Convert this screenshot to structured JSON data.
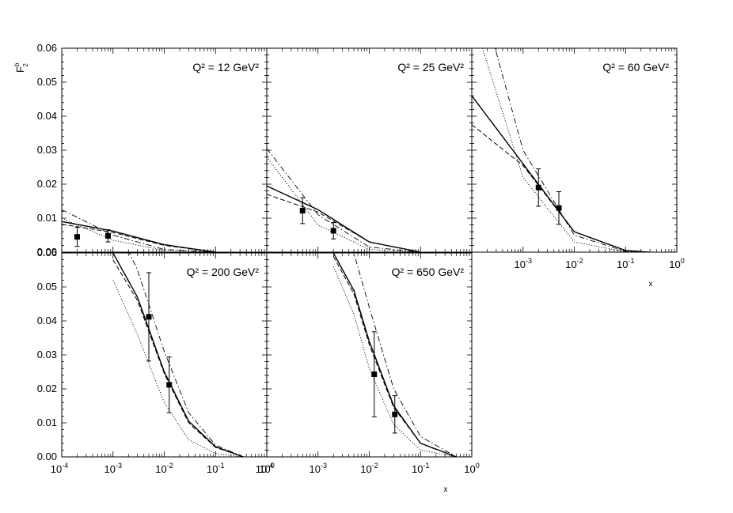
{
  "figure": {
    "ylabel_main": "F",
    "ylabel_sup": "b",
    "ylabel_sub": "2",
    "xlabel": "x"
  },
  "chart_data": [
    {
      "type": "line",
      "title": "Q² = 12 GeV²",
      "q2": "12",
      "xscale": "log",
      "xlim": [
        0.0001,
        1
      ],
      "ylim": [
        0,
        0.06
      ],
      "points": [
        {
          "x": 0.0002,
          "y": 0.0045,
          "yerr": 0.0028
        },
        {
          "x": 0.0008,
          "y": 0.0048,
          "yerr": 0.0018
        }
      ],
      "curves": [
        {
          "style": "solid",
          "x": [
            0.0001,
            0.001,
            0.01,
            0.1
          ],
          "y": [
            0.009,
            0.0062,
            0.0022,
            0
          ]
        },
        {
          "style": "dashed",
          "x": [
            0.0001,
            0.001,
            0.01,
            0.1
          ],
          "y": [
            0.0082,
            0.0058,
            0.002,
            0
          ]
        },
        {
          "style": "dashdot",
          "x": [
            0.0001,
            0.001,
            0.01,
            0.1
          ],
          "y": [
            0.0125,
            0.005,
            0.0008,
            0
          ]
        },
        {
          "style": "dotted",
          "x": [
            0.0001,
            0.001,
            0.01,
            0.1
          ],
          "y": [
            0.01,
            0.0035,
            0.0005,
            0
          ]
        }
      ]
    },
    {
      "type": "line",
      "title": "Q² = 25 GeV²",
      "q2": "25",
      "xscale": "log",
      "xlim": [
        0.0001,
        1
      ],
      "ylim": [
        0,
        0.06
      ],
      "points": [
        {
          "x": 0.0005,
          "y": 0.0122,
          "yerr": 0.0038
        },
        {
          "x": 0.002,
          "y": 0.0063,
          "yerr": 0.0024
        }
      ],
      "curves": [
        {
          "style": "solid",
          "x": [
            0.0001,
            0.001,
            0.01,
            0.1
          ],
          "y": [
            0.0195,
            0.0125,
            0.003,
            0
          ]
        },
        {
          "style": "dashed",
          "x": [
            0.0001,
            0.001,
            0.01,
            0.1
          ],
          "y": [
            0.017,
            0.0118,
            0.003,
            0
          ]
        },
        {
          "style": "dashdot",
          "x": [
            0.0001,
            0.001,
            0.01,
            0.1
          ],
          "y": [
            0.0305,
            0.011,
            0.0015,
            0
          ]
        },
        {
          "style": "dotted",
          "x": [
            0.0001,
            0.001,
            0.01,
            0.1
          ],
          "y": [
            0.028,
            0.008,
            0.0008,
            0
          ]
        }
      ]
    },
    {
      "type": "line",
      "title": "Q² = 60 GeV²",
      "q2": "60",
      "xscale": "log",
      "xlim": [
        0.0001,
        1
      ],
      "ylim": [
        0,
        0.06
      ],
      "xticklabels_show": true,
      "points": [
        {
          "x": 0.002,
          "y": 0.019,
          "yerr": 0.0055
        },
        {
          "x": 0.005,
          "y": 0.013,
          "yerr": 0.0048
        }
      ],
      "curves": [
        {
          "style": "solid",
          "x": [
            0.0001,
            0.001,
            0.01,
            0.1,
            0.3
          ],
          "y": [
            0.046,
            0.026,
            0.006,
            0.0005,
            0
          ]
        },
        {
          "style": "dashed",
          "x": [
            0.0001,
            0.001,
            0.01,
            0.1,
            0.3
          ],
          "y": [
            0.0375,
            0.0255,
            0.006,
            0.0005,
            0
          ]
        },
        {
          "style": "dashdot",
          "x": [
            0.0001,
            0.001,
            0.01,
            0.1,
            0.3
          ],
          "y": [
            0.085,
            0.03,
            0.005,
            0.0002,
            0
          ]
        },
        {
          "style": "dotted",
          "x": [
            0.0001,
            0.001,
            0.01,
            0.1,
            0.3
          ],
          "y": [
            0.07,
            0.022,
            0.003,
            0.0001,
            0
          ]
        }
      ]
    },
    {
      "type": "line",
      "title": "Q² = 200 GeV²",
      "q2": "200",
      "xscale": "log",
      "xlim": [
        0.0001,
        1
      ],
      "ylim": [
        0,
        0.06
      ],
      "points": [
        {
          "x": 0.005,
          "y": 0.0412,
          "yerr": 0.013
        },
        {
          "x": 0.0125,
          "y": 0.0212,
          "yerr": 0.0082
        }
      ],
      "curves": [
        {
          "style": "solid",
          "x": [
            0.001,
            0.003,
            0.01,
            0.03,
            0.1,
            0.35
          ],
          "y": [
            0.06,
            0.047,
            0.025,
            0.0105,
            0.003,
            0
          ]
        },
        {
          "style": "dashed",
          "x": [
            0.001,
            0.003,
            0.01,
            0.03,
            0.1,
            0.35
          ],
          "y": [
            0.058,
            0.046,
            0.0245,
            0.01,
            0.0028,
            0
          ]
        },
        {
          "style": "dashdot",
          "x": [
            0.001,
            0.003,
            0.01,
            0.03,
            0.1,
            0.35
          ],
          "y": [
            0.07,
            0.055,
            0.031,
            0.013,
            0.0035,
            0
          ]
        },
        {
          "style": "dotted",
          "x": [
            0.001,
            0.003,
            0.01,
            0.03,
            0.1,
            0.35
          ],
          "y": [
            0.052,
            0.036,
            0.016,
            0.005,
            0.001,
            0
          ]
        }
      ]
    },
    {
      "type": "line",
      "title": "Q² = 650 GeV²",
      "q2": "650",
      "xscale": "log",
      "xlim": [
        0.0001,
        1
      ],
      "ylim": [
        0,
        0.06
      ],
      "points": [
        {
          "x": 0.0125,
          "y": 0.0243,
          "yerr": 0.0125
        },
        {
          "x": 0.0315,
          "y": 0.0125,
          "yerr": 0.0055
        }
      ],
      "curves": [
        {
          "style": "solid",
          "x": [
            0.002,
            0.005,
            0.01,
            0.03,
            0.1,
            0.5
          ],
          "y": [
            0.06,
            0.049,
            0.034,
            0.015,
            0.004,
            0
          ]
        },
        {
          "style": "dashed",
          "x": [
            0.002,
            0.005,
            0.01,
            0.03,
            0.1,
            0.5
          ],
          "y": [
            0.059,
            0.048,
            0.033,
            0.0145,
            0.004,
            0
          ]
        },
        {
          "style": "dashdot",
          "x": [
            0.002,
            0.005,
            0.01,
            0.03,
            0.1,
            0.5
          ],
          "y": [
            0.07,
            0.06,
            0.044,
            0.02,
            0.006,
            0
          ]
        },
        {
          "style": "dotted",
          "x": [
            0.002,
            0.005,
            0.01,
            0.03,
            0.1,
            0.5
          ],
          "y": [
            0.056,
            0.042,
            0.026,
            0.0095,
            0.002,
            0
          ]
        }
      ]
    }
  ],
  "ytick_labels": [
    "0.00",
    "0.01",
    "0.02",
    "0.03",
    "0.04",
    "0.05",
    "0.06"
  ],
  "xtick_exponents": [
    "-4",
    "-3",
    "-2",
    "-1",
    "0"
  ],
  "xtick_base": "10"
}
